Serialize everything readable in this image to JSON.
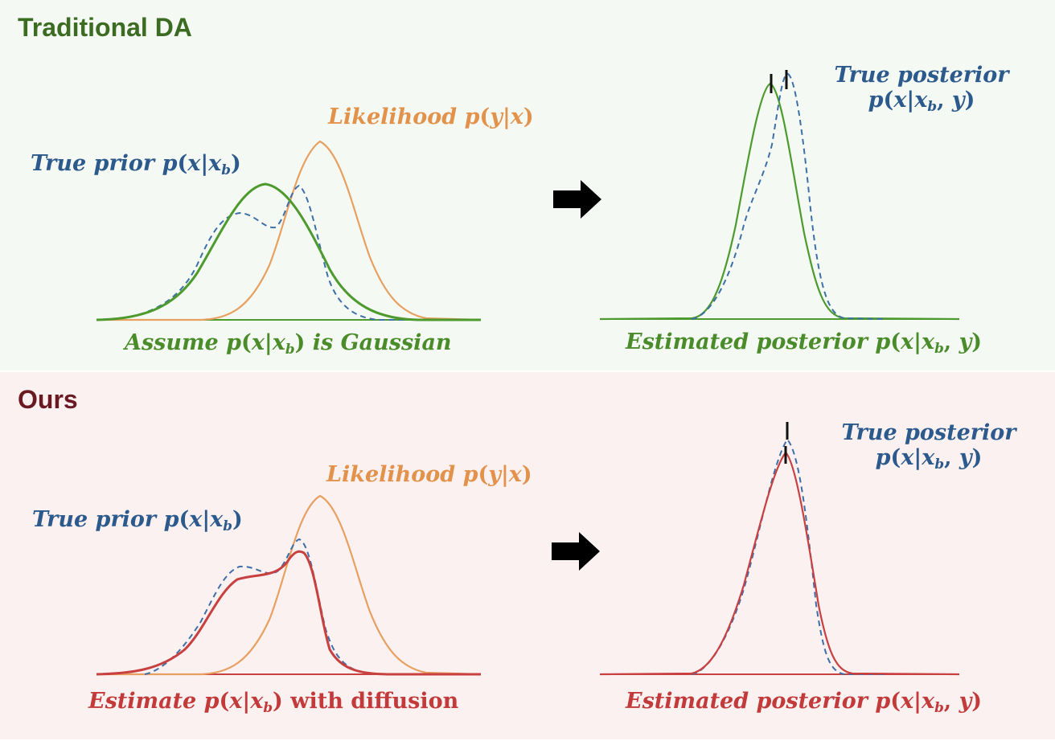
{
  "colors": {
    "prior_true": "#3d6fa8",
    "likelihood": "#e8a060",
    "gaussian_prior": "#4d9a2e",
    "diffusion_prior": "#c94040",
    "top_background": "#f5f9f4",
    "bottom_background": "#fbf1f1"
  },
  "top": {
    "heading": "Traditional DA",
    "true_prior_label": {
      "prefix": "True prior ",
      "p": "p",
      "open": "(",
      "x": "x",
      "bar": "|",
      "xb": "x",
      "b": "b",
      "close": ")"
    },
    "likelihood_label": {
      "prefix": "Likelihood ",
      "p": "p",
      "open": "(",
      "y": "y",
      "bar": "|",
      "x": "x",
      "close": ")"
    },
    "assume_label": {
      "prefix": "Assume ",
      "p": "p",
      "open": "(",
      "x": "x",
      "bar": "|",
      "xb": "x",
      "b": "b",
      "close": ")",
      "suffix": " is Gaussian"
    },
    "true_posterior_label": {
      "line1": "True posterior",
      "p": "p",
      "open": "(",
      "x": "x",
      "bar": "|",
      "xb": "x",
      "b": "b",
      "comma": ", ",
      "y": "y",
      "close": ")"
    },
    "estimated_posterior_label": {
      "prefix": "Estimated posterior ",
      "p": "p",
      "open": "(",
      "x": "x",
      "bar": "|",
      "xb": "x",
      "b": "b",
      "comma": ", ",
      "y": "y",
      "close": ")"
    }
  },
  "bottom": {
    "heading": "Ours",
    "true_prior_label": {
      "prefix": "True prior ",
      "p": "p",
      "open": "(",
      "x": "x",
      "bar": "|",
      "xb": "x",
      "b": "b",
      "close": ")"
    },
    "likelihood_label": {
      "prefix": "Likelihood ",
      "p": "p",
      "open": "(",
      "y": "y",
      "bar": "|",
      "x": "x",
      "close": ")"
    },
    "estimate_label": {
      "prefix": "Estimate ",
      "p": "p",
      "open": "(",
      "x": "x",
      "bar": "|",
      "xb": "x",
      "b": "b",
      "close": ")",
      "suffix": " with diffusion"
    },
    "true_posterior_label": {
      "line1": "True posterior",
      "p": "p",
      "open": "(",
      "x": "x",
      "bar": "|",
      "xb": "x",
      "b": "b",
      "comma": ", ",
      "y": "y",
      "close": ")"
    },
    "estimated_posterior_label": {
      "prefix": "Estimated posterior ",
      "p": "p",
      "open": "(",
      "x": "x",
      "bar": "|",
      "xb": "x",
      "b": "b",
      "comma": ", ",
      "y": "y",
      "close": ")"
    }
  },
  "icons": {
    "transition": "right-arrow-icon",
    "peak_marker": "tick-mark-icon"
  }
}
